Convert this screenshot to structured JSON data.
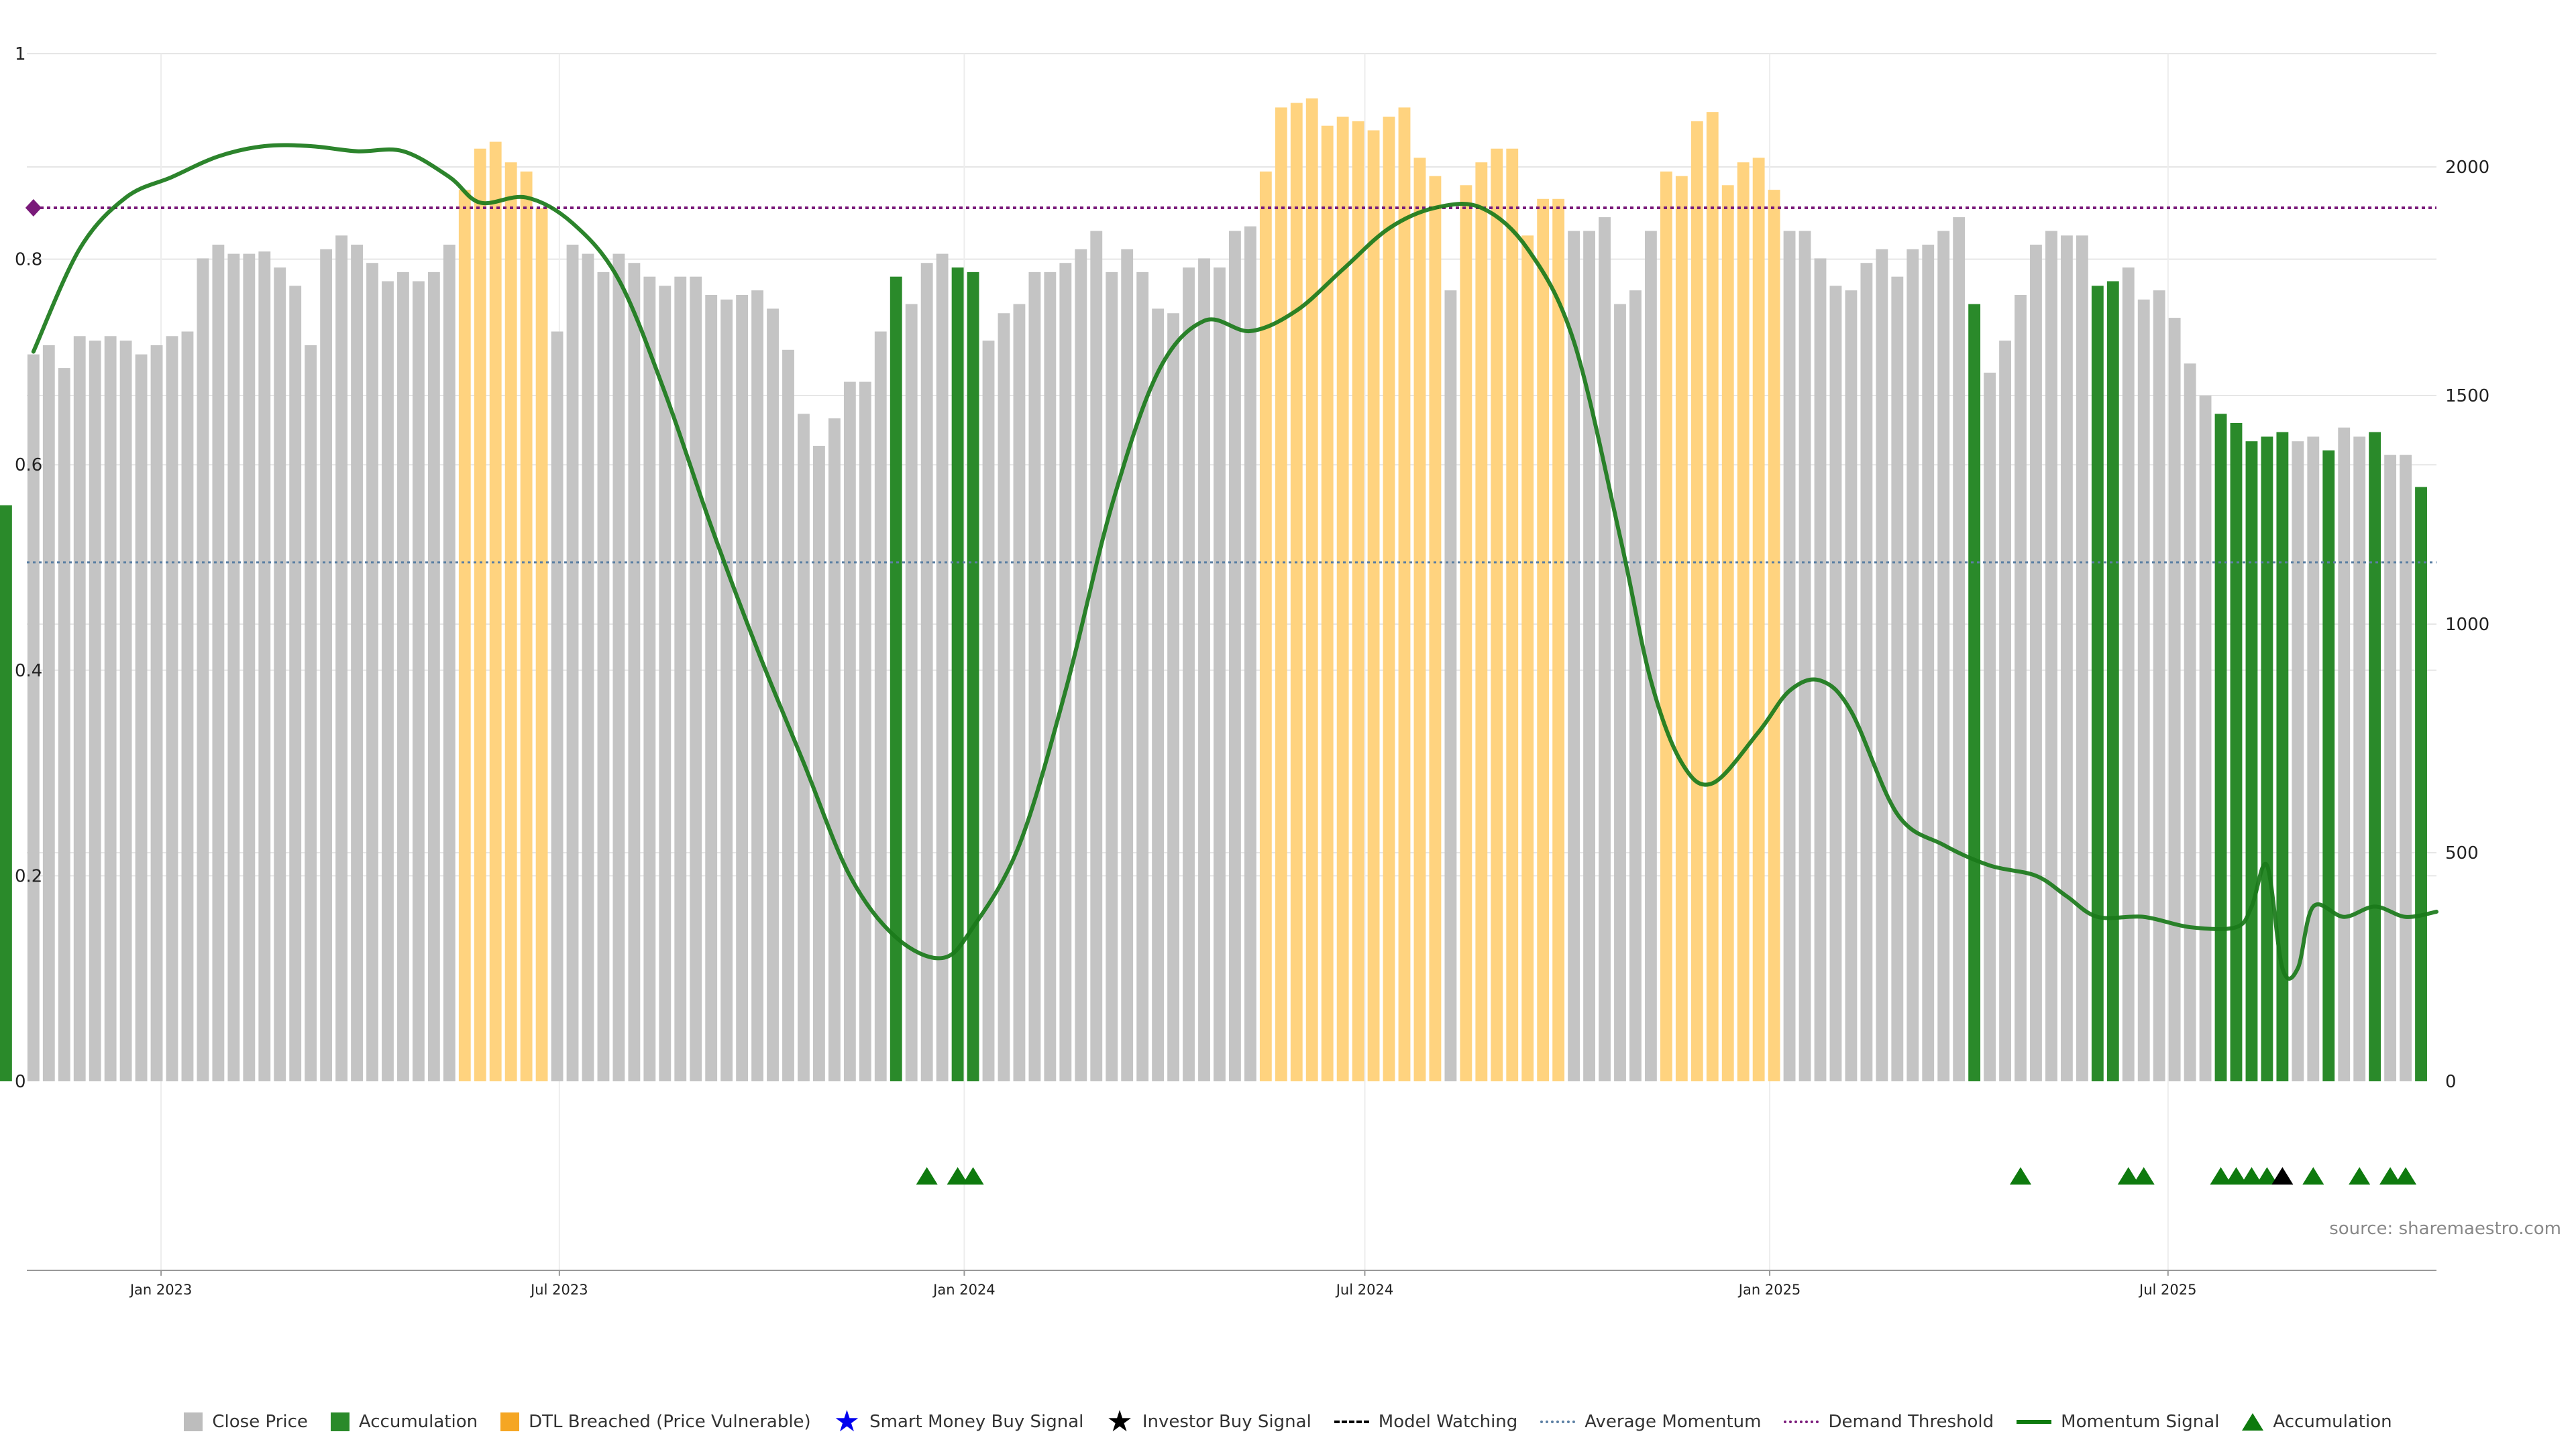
{
  "chart_data": {
    "type": "bar",
    "left_axis": {
      "ylim": [
        0,
        1
      ],
      "ticks": [
        "0",
        "0.2",
        "0.4",
        "0.6",
        "0.8",
        "1"
      ]
    },
    "right_axis": {
      "ylim": [
        0,
        2250
      ],
      "ticks": [
        "0",
        "500",
        "1000",
        "1500",
        "2000"
      ]
    },
    "x_axis": {
      "start_date": "2022-11-01",
      "end_date": "2025-10-31",
      "tick_labels": [
        "Jan 2023",
        "Jul 2023",
        "Jan 2024",
        "Jul 2024",
        "Jan 2025",
        "Jul 2025"
      ],
      "tick_dates": [
        "2023-01-01",
        "2023-07-01",
        "2024-01-01",
        "2024-07-01",
        "2025-01-01",
        "2025-07-01"
      ]
    },
    "bars": {
      "dates": [
        "2022-11-04",
        "2022-11-11",
        "2022-11-18",
        "2022-11-25",
        "2022-12-02",
        "2022-12-09",
        "2022-12-16",
        "2022-12-23",
        "2022-12-30",
        "2023-01-06",
        "2023-01-13",
        "2023-01-20",
        "2023-01-27",
        "2023-02-03",
        "2023-02-10",
        "2023-02-17",
        "2023-02-24",
        "2023-03-03",
        "2023-03-10",
        "2023-03-17",
        "2023-03-24",
        "2023-03-31",
        "2023-04-07",
        "2023-04-14",
        "2023-04-21",
        "2023-04-28",
        "2023-05-05",
        "2023-05-12",
        "2023-05-19",
        "2023-05-26",
        "2023-06-02",
        "2023-06-09",
        "2023-06-16",
        "2023-06-23",
        "2023-06-30",
        "2023-07-07",
        "2023-07-14",
        "2023-07-21",
        "2023-07-28",
        "2023-08-04",
        "2023-08-11",
        "2023-08-18",
        "2023-08-25",
        "2023-09-01",
        "2023-09-08",
        "2023-09-15",
        "2023-09-22",
        "2023-09-29",
        "2023-10-06",
        "2023-10-13",
        "2023-10-20",
        "2023-10-27",
        "2023-11-03",
        "2023-11-10",
        "2023-11-17",
        "2023-11-24",
        "2023-12-01",
        "2023-12-08",
        "2023-12-15",
        "2023-12-22",
        "2023-12-29",
        "2024-01-05",
        "2024-01-12",
        "2024-01-19",
        "2024-01-26",
        "2024-02-02",
        "2024-02-09",
        "2024-02-16",
        "2024-02-23",
        "2024-03-01",
        "2024-03-08",
        "2024-03-15",
        "2024-03-22",
        "2024-03-29",
        "2024-04-05",
        "2024-04-12",
        "2024-04-19",
        "2024-04-26",
        "2024-05-03",
        "2024-05-10",
        "2024-05-17",
        "2024-05-24",
        "2024-05-31",
        "2024-06-07",
        "2024-06-14",
        "2024-06-21",
        "2024-06-28",
        "2024-07-05",
        "2024-07-12",
        "2024-07-19",
        "2024-07-26",
        "2024-08-02",
        "2024-08-09",
        "2024-08-16",
        "2024-08-23",
        "2024-08-30",
        "2024-09-06",
        "2024-09-13",
        "2024-09-20",
        "2024-09-27",
        "2024-10-04",
        "2024-10-11",
        "2024-10-18",
        "2024-10-25",
        "2024-11-01",
        "2024-11-08",
        "2024-11-15",
        "2024-11-22",
        "2024-11-29",
        "2024-12-06",
        "2024-12-13",
        "2024-12-20",
        "2024-12-27",
        "2025-01-03",
        "2025-01-10",
        "2025-01-17",
        "2025-01-24",
        "2025-01-31",
        "2025-02-07",
        "2025-02-14",
        "2025-02-21",
        "2025-02-28",
        "2025-03-07",
        "2025-03-14",
        "2025-03-21",
        "2025-03-28",
        "2025-04-04",
        "2025-04-11",
        "2025-04-18",
        "2025-04-25",
        "2025-05-02",
        "2025-05-09",
        "2025-05-16",
        "2025-05-23",
        "2025-05-30",
        "2025-06-06",
        "2025-06-13",
        "2025-06-20",
        "2025-06-27",
        "2025-07-04",
        "2025-07-11",
        "2025-07-18",
        "2025-07-25",
        "2025-08-01",
        "2025-08-08",
        "2025-08-15",
        "2025-08-22",
        "2025-08-29",
        "2025-09-05",
        "2025-09-12",
        "2025-09-19",
        "2025-09-26",
        "2025-10-03",
        "2025-10-10",
        "2025-10-17",
        "2025-10-24"
      ],
      "values": [
        1590,
        1610,
        1560,
        1630,
        1620,
        1630,
        1620,
        1590,
        1610,
        1630,
        1640,
        1800,
        1830,
        1810,
        1810,
        1815,
        1780,
        1740,
        1610,
        1820,
        1850,
        1830,
        1790,
        1750,
        1770,
        1750,
        1770,
        1830,
        1950,
        2040,
        2055,
        2010,
        1990,
        1910,
        1640,
        1830,
        1810,
        1770,
        1810,
        1790,
        1760,
        1740,
        1760,
        1760,
        1720,
        1710,
        1720,
        1730,
        1690,
        1600,
        1460,
        1390,
        1450,
        1530,
        1530,
        1640,
        1760,
        1700,
        1790,
        1810,
        1780,
        1770,
        1620,
        1680,
        1700,
        1770,
        1770,
        1790,
        1820,
        1860,
        1770,
        1820,
        1770,
        1690,
        1680,
        1780,
        1800,
        1780,
        1860,
        1870,
        1990,
        2130,
        2140,
        2150,
        2090,
        2110,
        2100,
        2080,
        2110,
        2130,
        2020,
        1980,
        1730,
        1960,
        2010,
        2040,
        2040,
        1850,
        1930,
        1930,
        1860,
        1860,
        1890,
        1700,
        1730,
        1860,
        1990,
        1980,
        2100,
        2120,
        1960,
        2010,
        2020,
        1950,
        1860,
        1860,
        1800,
        1740,
        1730,
        1790,
        1820,
        1760,
        1820,
        1830,
        1860,
        1890,
        1700,
        1550,
        1620,
        1720,
        1830,
        1860,
        1850,
        1850,
        1740,
        1750,
        1780,
        1710,
        1730,
        1670,
        1570,
        1500,
        1460,
        1440,
        1400,
        1410,
        1420,
        1400,
        1410,
        1380,
        1430,
        1410,
        1420,
        1370,
        1370,
        1300,
        1260
      ],
      "categories": [
        "G",
        "G",
        "G",
        "G",
        "G",
        "G",
        "G",
        "G",
        "G",
        "G",
        "G",
        "G",
        "G",
        "G",
        "G",
        "G",
        "G",
        "G",
        "G",
        "G",
        "G",
        "G",
        "G",
        "G",
        "G",
        "G",
        "G",
        "G",
        "O",
        "O",
        "O",
        "O",
        "O",
        "O",
        "G",
        "G",
        "G",
        "G",
        "G",
        "G",
        "G",
        "G",
        "G",
        "G",
        "G",
        "G",
        "G",
        "G",
        "G",
        "G",
        "G",
        "G",
        "G",
        "G",
        "G",
        "G",
        "A",
        "G",
        "G",
        "G",
        "A",
        "A",
        "G",
        "G",
        "G",
        "G",
        "G",
        "G",
        "G",
        "G",
        "G",
        "G",
        "G",
        "G",
        "G",
        "G",
        "G",
        "G",
        "G",
        "G",
        "O",
        "O",
        "O",
        "O",
        "O",
        "O",
        "O",
        "O",
        "O",
        "O",
        "O",
        "O",
        "G",
        "O",
        "O",
        "O",
        "O",
        "O",
        "O",
        "O",
        "G",
        "G",
        "G",
        "G",
        "G",
        "G",
        "O",
        "O",
        "O",
        "O",
        "O",
        "O",
        "O",
        "O",
        "G",
        "G",
        "G",
        "G",
        "G",
        "G",
        "G",
        "G",
        "G",
        "G",
        "G",
        "G",
        "A",
        "G",
        "G",
        "G",
        "G",
        "G",
        "G",
        "G",
        "A",
        "A",
        "G",
        "G",
        "G",
        "G",
        "G",
        "G",
        "A",
        "A",
        "A",
        "A",
        "A",
        "G",
        "G",
        "A",
        "G",
        "G",
        "A",
        "G",
        "G",
        "A",
        "A"
      ]
    },
    "momentum": {
      "points": [
        [
          "2022-11-04",
          0.71
        ],
        [
          "2022-11-25",
          0.81
        ],
        [
          "2022-12-16",
          0.86
        ],
        [
          "2023-01-06",
          0.88
        ],
        [
          "2023-01-27",
          0.9
        ],
        [
          "2023-02-17",
          0.91
        ],
        [
          "2023-03-10",
          0.91
        ],
        [
          "2023-03-31",
          0.905
        ],
        [
          "2023-04-21",
          0.905
        ],
        [
          "2023-05-12",
          0.88
        ],
        [
          "2023-05-26",
          0.855
        ],
        [
          "2023-06-16",
          0.86
        ],
        [
          "2023-07-07",
          0.835
        ],
        [
          "2023-07-28",
          0.78
        ],
        [
          "2023-08-18",
          0.67
        ],
        [
          "2023-09-08",
          0.54
        ],
        [
          "2023-09-29",
          0.42
        ],
        [
          "2023-10-20",
          0.31
        ],
        [
          "2023-11-10",
          0.2
        ],
        [
          "2023-12-01",
          0.14
        ],
        [
          "2023-12-22",
          0.12
        ],
        [
          "2024-01-05",
          0.15
        ],
        [
          "2024-01-26",
          0.23
        ],
        [
          "2024-02-16",
          0.38
        ],
        [
          "2024-03-08",
          0.56
        ],
        [
          "2024-03-29",
          0.69
        ],
        [
          "2024-04-19",
          0.74
        ],
        [
          "2024-05-10",
          0.73
        ],
        [
          "2024-05-31",
          0.75
        ],
        [
          "2024-06-21",
          0.79
        ],
        [
          "2024-07-12",
          0.83
        ],
        [
          "2024-08-02",
          0.85
        ],
        [
          "2024-08-23",
          0.85
        ],
        [
          "2024-09-13",
          0.81
        ],
        [
          "2024-10-04",
          0.72
        ],
        [
          "2024-10-25",
          0.53
        ],
        [
          "2024-11-08",
          0.39
        ],
        [
          "2024-11-22",
          0.31
        ],
        [
          "2024-12-06",
          0.29
        ],
        [
          "2024-12-27",
          0.34
        ],
        [
          "2025-01-10",
          0.38
        ],
        [
          "2025-01-24",
          0.39
        ],
        [
          "2025-02-07",
          0.36
        ],
        [
          "2025-02-28",
          0.26
        ],
        [
          "2025-03-21",
          0.23
        ],
        [
          "2025-04-11",
          0.21
        ],
        [
          "2025-05-02",
          0.2
        ],
        [
          "2025-05-16",
          0.18
        ],
        [
          "2025-05-30",
          0.16
        ],
        [
          "2025-06-20",
          0.16
        ],
        [
          "2025-07-11",
          0.15
        ],
        [
          "2025-08-01",
          0.15
        ],
        [
          "2025-08-08",
          0.17
        ],
        [
          "2025-08-15",
          0.21
        ],
        [
          "2025-08-22",
          0.11
        ],
        [
          "2025-08-29",
          0.11
        ],
        [
          "2025-09-05",
          0.17
        ],
        [
          "2025-09-19",
          0.16
        ],
        [
          "2025-10-03",
          0.17
        ],
        [
          "2025-10-17",
          0.16
        ],
        [
          "2025-10-31",
          0.165
        ]
      ]
    },
    "average_momentum": 0.505,
    "demand_threshold": 0.85,
    "demand_marker": [
      "2022-11-04",
      0.85
    ],
    "signal_triangles": [
      {
        "date": "2023-12-15",
        "type": "accumulation"
      },
      {
        "date": "2023-12-29",
        "type": "accumulation"
      },
      {
        "date": "2024-01-05",
        "type": "accumulation"
      },
      {
        "date": "2025-04-25",
        "type": "accumulation"
      },
      {
        "date": "2025-06-13",
        "type": "accumulation"
      },
      {
        "date": "2025-06-20",
        "type": "accumulation"
      },
      {
        "date": "2025-07-25",
        "type": "accumulation"
      },
      {
        "date": "2025-08-01",
        "type": "accumulation"
      },
      {
        "date": "2025-08-08",
        "type": "accumulation"
      },
      {
        "date": "2025-08-15",
        "type": "accumulation"
      },
      {
        "date": "2025-08-22",
        "type": "investor"
      },
      {
        "date": "2025-09-05",
        "type": "accumulation"
      },
      {
        "date": "2025-09-26",
        "type": "accumulation"
      },
      {
        "date": "2025-10-10",
        "type": "accumulation"
      },
      {
        "date": "2025-10-17",
        "type": "accumulation"
      }
    ],
    "grid": true
  },
  "colors": {
    "close_price": "#c4c4c4",
    "accumulation": "#2a8a2a",
    "dtl_breached": "#ffd37f",
    "momentum": "#1a7a1a",
    "average_momentum": "#5b7fa3",
    "demand_threshold": "#7a1a7a",
    "smart_money": "#0000ee",
    "investor": "#000000",
    "triangle": "#0e7a0e",
    "grid": "#e6e6e6"
  },
  "source_text": "source: sharemaestro.com",
  "legend": [
    {
      "label": "Close Price",
      "swatch": "square",
      "color": "#bdbdbd"
    },
    {
      "label": "Accumulation",
      "swatch": "square",
      "color": "#2a8a2a"
    },
    {
      "label": "DTL Breached (Price Vulnerable)",
      "swatch": "square",
      "color": "#f5a623"
    },
    {
      "label": "Smart Money Buy Signal",
      "swatch": "star",
      "color": "#0000ee"
    },
    {
      "label": "Investor Buy Signal",
      "swatch": "star",
      "color": "#000000"
    },
    {
      "label": "Model Watching",
      "swatch": "dashed",
      "color": "#000000"
    },
    {
      "label": "Average Momentum",
      "swatch": "dotted",
      "color": "#5b7fa3"
    },
    {
      "label": "Demand Threshold",
      "swatch": "dotted",
      "color": "#7a1a7a"
    },
    {
      "label": "Momentum Signal",
      "swatch": "solid",
      "color": "#0e7a0e"
    },
    {
      "label": "Accumulation",
      "swatch": "triangle",
      "color": "#0e7a0e"
    }
  ]
}
